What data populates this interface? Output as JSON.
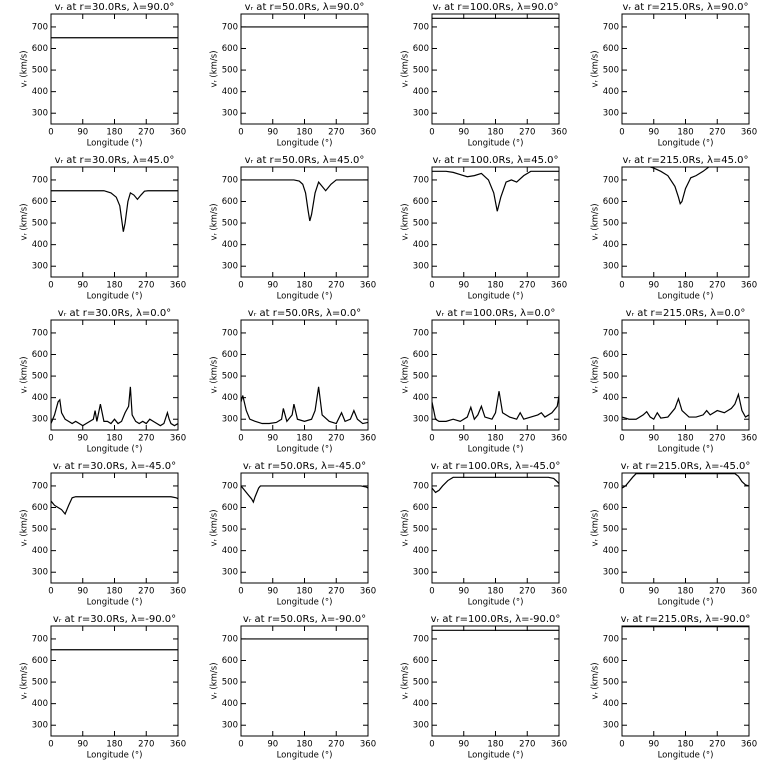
{
  "chart_data": [
    {
      "type": "line",
      "title": "vᵣ at r=30.0Rs, λ=90.0°",
      "xlabel": "Longitude (°)",
      "ylabel": "vᵣ (km/s)",
      "x": [
        0,
        360
      ],
      "values": [
        650,
        650
      ],
      "color": "#000000",
      "xlim": [
        0,
        360
      ],
      "ylim": [
        250,
        760
      ],
      "xticks": [
        0,
        90,
        180,
        270,
        360
      ],
      "yticks": [
        300,
        400,
        500,
        600,
        700
      ]
    },
    {
      "type": "line",
      "title": "vᵣ at r=50.0Rs, λ=90.0°",
      "xlabel": "Longitude (°)",
      "ylabel": "vᵣ (km/s)",
      "x": [
        0,
        360
      ],
      "values": [
        700,
        700
      ],
      "color": "#000000",
      "xlim": [
        0,
        360
      ],
      "ylim": [
        250,
        760
      ],
      "xticks": [
        0,
        90,
        180,
        270,
        360
      ],
      "yticks": [
        300,
        400,
        500,
        600,
        700
      ]
    },
    {
      "type": "line",
      "title": "vᵣ at r=100.0Rs, λ=90.0°",
      "xlabel": "Longitude (°)",
      "ylabel": "vᵣ (km/s)",
      "x": [
        0,
        360
      ],
      "values": [
        740,
        740
      ],
      "color": "#000000",
      "xlim": [
        0,
        360
      ],
      "ylim": [
        250,
        760
      ],
      "xticks": [
        0,
        90,
        180,
        270,
        360
      ],
      "yticks": [
        300,
        400,
        500,
        600,
        700
      ]
    },
    {
      "type": "line",
      "title": "vᵣ at r=215.0Rs, λ=90.0°",
      "xlabel": "Longitude (°)",
      "ylabel": "vᵣ (km/s)",
      "x": [
        0,
        360
      ],
      "values": [
        765,
        765
      ],
      "color": "#000000",
      "xlim": [
        0,
        360
      ],
      "ylim": [
        250,
        760
      ],
      "xticks": [
        0,
        90,
        180,
        270,
        360
      ],
      "yticks": [
        300,
        400,
        500,
        600,
        700
      ]
    },
    {
      "type": "line",
      "title": "vᵣ at r=30.0Rs, λ=45.0°",
      "xlabel": "Longitude (°)",
      "ylabel": "vᵣ (km/s)",
      "x": [
        0,
        150,
        170,
        185,
        195,
        200,
        205,
        210,
        218,
        225,
        235,
        245,
        255,
        265,
        275,
        360
      ],
      "values": [
        650,
        650,
        640,
        620,
        580,
        520,
        460,
        500,
        600,
        640,
        630,
        610,
        630,
        648,
        650,
        650
      ],
      "color": "#000000",
      "xlim": [
        0,
        360
      ],
      "ylim": [
        250,
        760
      ],
      "xticks": [
        0,
        90,
        180,
        270,
        360
      ],
      "yticks": [
        300,
        400,
        500,
        600,
        700
      ]
    },
    {
      "type": "line",
      "title": "vᵣ at r=50.0Rs, λ=45.0°",
      "xlabel": "Longitude (°)",
      "ylabel": "vᵣ (km/s)",
      "x": [
        0,
        150,
        165,
        175,
        183,
        190,
        195,
        200,
        210,
        220,
        230,
        240,
        255,
        270,
        360
      ],
      "values": [
        700,
        700,
        695,
        680,
        640,
        560,
        510,
        540,
        640,
        690,
        670,
        650,
        680,
        700,
        700
      ],
      "color": "#000000",
      "xlim": [
        0,
        360
      ],
      "ylim": [
        250,
        760
      ],
      "xticks": [
        0,
        90,
        180,
        270,
        360
      ],
      "yticks": [
        300,
        400,
        500,
        600,
        700
      ]
    },
    {
      "type": "line",
      "title": "vᵣ at r=100.0Rs, λ=45.0°",
      "xlabel": "Longitude (°)",
      "ylabel": "vᵣ (km/s)",
      "x": [
        0,
        40,
        60,
        80,
        100,
        120,
        140,
        160,
        175,
        185,
        195,
        210,
        225,
        240,
        260,
        280,
        360
      ],
      "values": [
        740,
        740,
        735,
        725,
        715,
        720,
        730,
        700,
        640,
        555,
        620,
        690,
        700,
        690,
        720,
        740,
        740
      ],
      "color": "#000000",
      "xlim": [
        0,
        360
      ],
      "ylim": [
        250,
        760
      ],
      "xticks": [
        0,
        90,
        180,
        270,
        360
      ],
      "yticks": [
        300,
        400,
        500,
        600,
        700
      ]
    },
    {
      "type": "line",
      "title": "vᵣ at r=215.0Rs, λ=45.0°",
      "xlabel": "Longitude (°)",
      "ylabel": "vᵣ (km/s)",
      "x": [
        0,
        70,
        90,
        110,
        130,
        150,
        160,
        165,
        170,
        180,
        195,
        210,
        230,
        250,
        360
      ],
      "values": [
        765,
        765,
        755,
        740,
        720,
        670,
        620,
        590,
        600,
        660,
        710,
        720,
        740,
        765,
        765
      ],
      "color": "#000000",
      "xlim": [
        0,
        360
      ],
      "ylim": [
        250,
        760
      ],
      "xticks": [
        0,
        90,
        180,
        270,
        360
      ],
      "yticks": [
        300,
        400,
        500,
        600,
        700
      ]
    },
    {
      "type": "line",
      "title": "vᵣ at r=30.0Rs, λ=0.0°",
      "xlabel": "Longitude (°)",
      "ylabel": "vᵣ (km/s)",
      "x": [
        0,
        10,
        20,
        25,
        30,
        40,
        50,
        60,
        70,
        80,
        90,
        100,
        110,
        120,
        125,
        130,
        140,
        145,
        150,
        160,
        170,
        180,
        190,
        200,
        210,
        220,
        225,
        230,
        240,
        250,
        260,
        270,
        280,
        290,
        300,
        310,
        320,
        330,
        335,
        340,
        350,
        360
      ],
      "values": [
        280,
        320,
        380,
        390,
        330,
        300,
        290,
        280,
        290,
        280,
        270,
        280,
        290,
        300,
        340,
        290,
        370,
        330,
        290,
        290,
        280,
        300,
        280,
        290,
        330,
        360,
        450,
        320,
        290,
        280,
        290,
        280,
        300,
        290,
        280,
        270,
        280,
        330,
        300,
        280,
        270,
        280
      ],
      "color": "#000000",
      "xlim": [
        0,
        360
      ],
      "ylim": [
        250,
        760
      ],
      "xticks": [
        0,
        90,
        180,
        270,
        360
      ],
      "yticks": [
        300,
        400,
        500,
        600,
        700
      ]
    },
    {
      "type": "line",
      "title": "vᵣ at r=50.0Rs, λ=0.0°",
      "xlabel": "Longitude (°)",
      "ylabel": "vᵣ (km/s)",
      "x": [
        0,
        5,
        15,
        25,
        40,
        60,
        80,
        100,
        115,
        120,
        130,
        145,
        150,
        160,
        180,
        200,
        210,
        220,
        230,
        250,
        270,
        285,
        295,
        310,
        320,
        330,
        345,
        360
      ],
      "values": [
        380,
        410,
        340,
        300,
        290,
        280,
        280,
        285,
        300,
        350,
        290,
        320,
        370,
        300,
        290,
        300,
        340,
        450,
        320,
        290,
        280,
        330,
        290,
        300,
        340,
        300,
        280,
        285
      ],
      "color": "#000000",
      "xlim": [
        0,
        360
      ],
      "ylim": [
        250,
        760
      ],
      "xticks": [
        0,
        90,
        180,
        270,
        360
      ],
      "yticks": [
        300,
        400,
        500,
        600,
        700
      ]
    },
    {
      "type": "line",
      "title": "vᵣ at r=100.0Rs, λ=0.0°",
      "xlabel": "Longitude (°)",
      "ylabel": "vᵣ (km/s)",
      "x": [
        0,
        10,
        20,
        40,
        60,
        80,
        100,
        110,
        120,
        130,
        140,
        150,
        170,
        180,
        190,
        200,
        220,
        240,
        250,
        260,
        280,
        300,
        310,
        320,
        340,
        355,
        360
      ],
      "values": [
        380,
        300,
        290,
        290,
        300,
        290,
        310,
        355,
        300,
        320,
        360,
        310,
        300,
        330,
        430,
        330,
        310,
        300,
        330,
        300,
        310,
        320,
        330,
        310,
        330,
        360,
        410
      ],
      "color": "#000000",
      "xlim": [
        0,
        360
      ],
      "ylim": [
        250,
        760
      ],
      "xticks": [
        0,
        90,
        180,
        270,
        360
      ],
      "yticks": [
        300,
        400,
        500,
        600,
        700
      ]
    },
    {
      "type": "line",
      "title": "vᵣ at r=215.0Rs, λ=0.0°",
      "xlabel": "Longitude (°)",
      "ylabel": "vᵣ (km/s)",
      "x": [
        0,
        20,
        40,
        60,
        70,
        80,
        90,
        100,
        110,
        130,
        150,
        160,
        170,
        190,
        210,
        230,
        240,
        250,
        270,
        290,
        310,
        320,
        330,
        340,
        350,
        360
      ],
      "values": [
        310,
        300,
        300,
        320,
        335,
        310,
        300,
        330,
        305,
        310,
        350,
        395,
        340,
        310,
        310,
        320,
        340,
        320,
        340,
        330,
        350,
        370,
        415,
        340,
        310,
        320
      ],
      "color": "#000000",
      "xlim": [
        0,
        360
      ],
      "ylim": [
        250,
        760
      ],
      "xticks": [
        0,
        90,
        180,
        270,
        360
      ],
      "yticks": [
        300,
        400,
        500,
        600,
        700
      ]
    },
    {
      "type": "line",
      "title": "vᵣ at r=30.0Rs, λ=-45.0°",
      "xlabel": "Longitude (°)",
      "ylabel": "vᵣ (km/s)",
      "x": [
        0,
        10,
        20,
        30,
        40,
        50,
        60,
        70,
        340,
        355,
        360
      ],
      "values": [
        630,
        610,
        600,
        590,
        570,
        610,
        645,
        650,
        650,
        645,
        640
      ],
      "color": "#000000",
      "xlim": [
        0,
        360
      ],
      "ylim": [
        250,
        760
      ],
      "xticks": [
        0,
        90,
        180,
        270,
        360
      ],
      "yticks": [
        300,
        400,
        500,
        600,
        700
      ]
    },
    {
      "type": "line",
      "title": "vᵣ at r=50.0Rs, λ=-45.0°",
      "xlabel": "Longitude (°)",
      "ylabel": "vᵣ (km/s)",
      "x": [
        0,
        10,
        20,
        30,
        35,
        40,
        50,
        55,
        340,
        355,
        360
      ],
      "values": [
        700,
        680,
        660,
        640,
        625,
        650,
        690,
        700,
        700,
        695,
        690
      ],
      "color": "#000000",
      "xlim": [
        0,
        360
      ],
      "ylim": [
        250,
        760
      ],
      "xticks": [
        0,
        90,
        180,
        270,
        360
      ],
      "yticks": [
        300,
        400,
        500,
        600,
        700
      ]
    },
    {
      "type": "line",
      "title": "vᵣ at r=100.0Rs, λ=-45.0°",
      "xlabel": "Longitude (°)",
      "ylabel": "vᵣ (km/s)",
      "x": [
        0,
        10,
        20,
        30,
        45,
        60,
        330,
        345,
        355,
        360
      ],
      "values": [
        690,
        670,
        680,
        700,
        725,
        740,
        740,
        735,
        720,
        710
      ],
      "color": "#000000",
      "xlim": [
        0,
        360
      ],
      "ylim": [
        250,
        760
      ],
      "xticks": [
        0,
        90,
        180,
        270,
        360
      ],
      "yticks": [
        300,
        400,
        500,
        600,
        700
      ]
    },
    {
      "type": "line",
      "title": "vᵣ at r=215.0Rs, λ=-45.0°",
      "xlabel": "Longitude (°)",
      "ylabel": "vᵣ (km/s)",
      "x": [
        0,
        10,
        20,
        30,
        40,
        320,
        330,
        340,
        350,
        360
      ],
      "values": [
        690,
        700,
        720,
        740,
        757,
        757,
        745,
        720,
        705,
        700
      ],
      "color": "#000000",
      "xlim": [
        0,
        360
      ],
      "ylim": [
        250,
        760
      ],
      "xticks": [
        0,
        90,
        180,
        270,
        360
      ],
      "yticks": [
        300,
        400,
        500,
        600,
        700
      ]
    },
    {
      "type": "line",
      "title": "vᵣ at r=30.0Rs, λ=-90.0°",
      "xlabel": "Longitude (°)",
      "ylabel": "vᵣ (km/s)",
      "x": [
        0,
        360
      ],
      "values": [
        650,
        650
      ],
      "color": "#000000",
      "xlim": [
        0,
        360
      ],
      "ylim": [
        250,
        760
      ],
      "xticks": [
        0,
        90,
        180,
        270,
        360
      ],
      "yticks": [
        300,
        400,
        500,
        600,
        700
      ]
    },
    {
      "type": "line",
      "title": "vᵣ at r=50.0Rs, λ=-90.0°",
      "xlabel": "Longitude (°)",
      "ylabel": "vᵣ (km/s)",
      "x": [
        0,
        360
      ],
      "values": [
        700,
        700
      ],
      "color": "#000000",
      "xlim": [
        0,
        360
      ],
      "ylim": [
        250,
        760
      ],
      "xticks": [
        0,
        90,
        180,
        270,
        360
      ],
      "yticks": [
        300,
        400,
        500,
        600,
        700
      ]
    },
    {
      "type": "line",
      "title": "vᵣ at r=100.0Rs, λ=-90.0°",
      "xlabel": "Longitude (°)",
      "ylabel": "vᵣ (km/s)",
      "x": [
        0,
        360
      ],
      "values": [
        740,
        740
      ],
      "color": "#000000",
      "xlim": [
        0,
        360
      ],
      "ylim": [
        250,
        760
      ],
      "xticks": [
        0,
        90,
        180,
        270,
        360
      ],
      "yticks": [
        300,
        400,
        500,
        600,
        700
      ]
    },
    {
      "type": "line",
      "title": "vᵣ at r=215.0Rs, λ=-90.0°",
      "xlabel": "Longitude (°)",
      "ylabel": "vᵣ (km/s)",
      "x": [
        0,
        360
      ],
      "values": [
        757,
        757
      ],
      "color": "#000000",
      "xlim": [
        0,
        360
      ],
      "ylim": [
        250,
        760
      ],
      "xticks": [
        0,
        90,
        180,
        270,
        360
      ],
      "yticks": [
        300,
        400,
        500,
        600,
        700
      ]
    }
  ]
}
